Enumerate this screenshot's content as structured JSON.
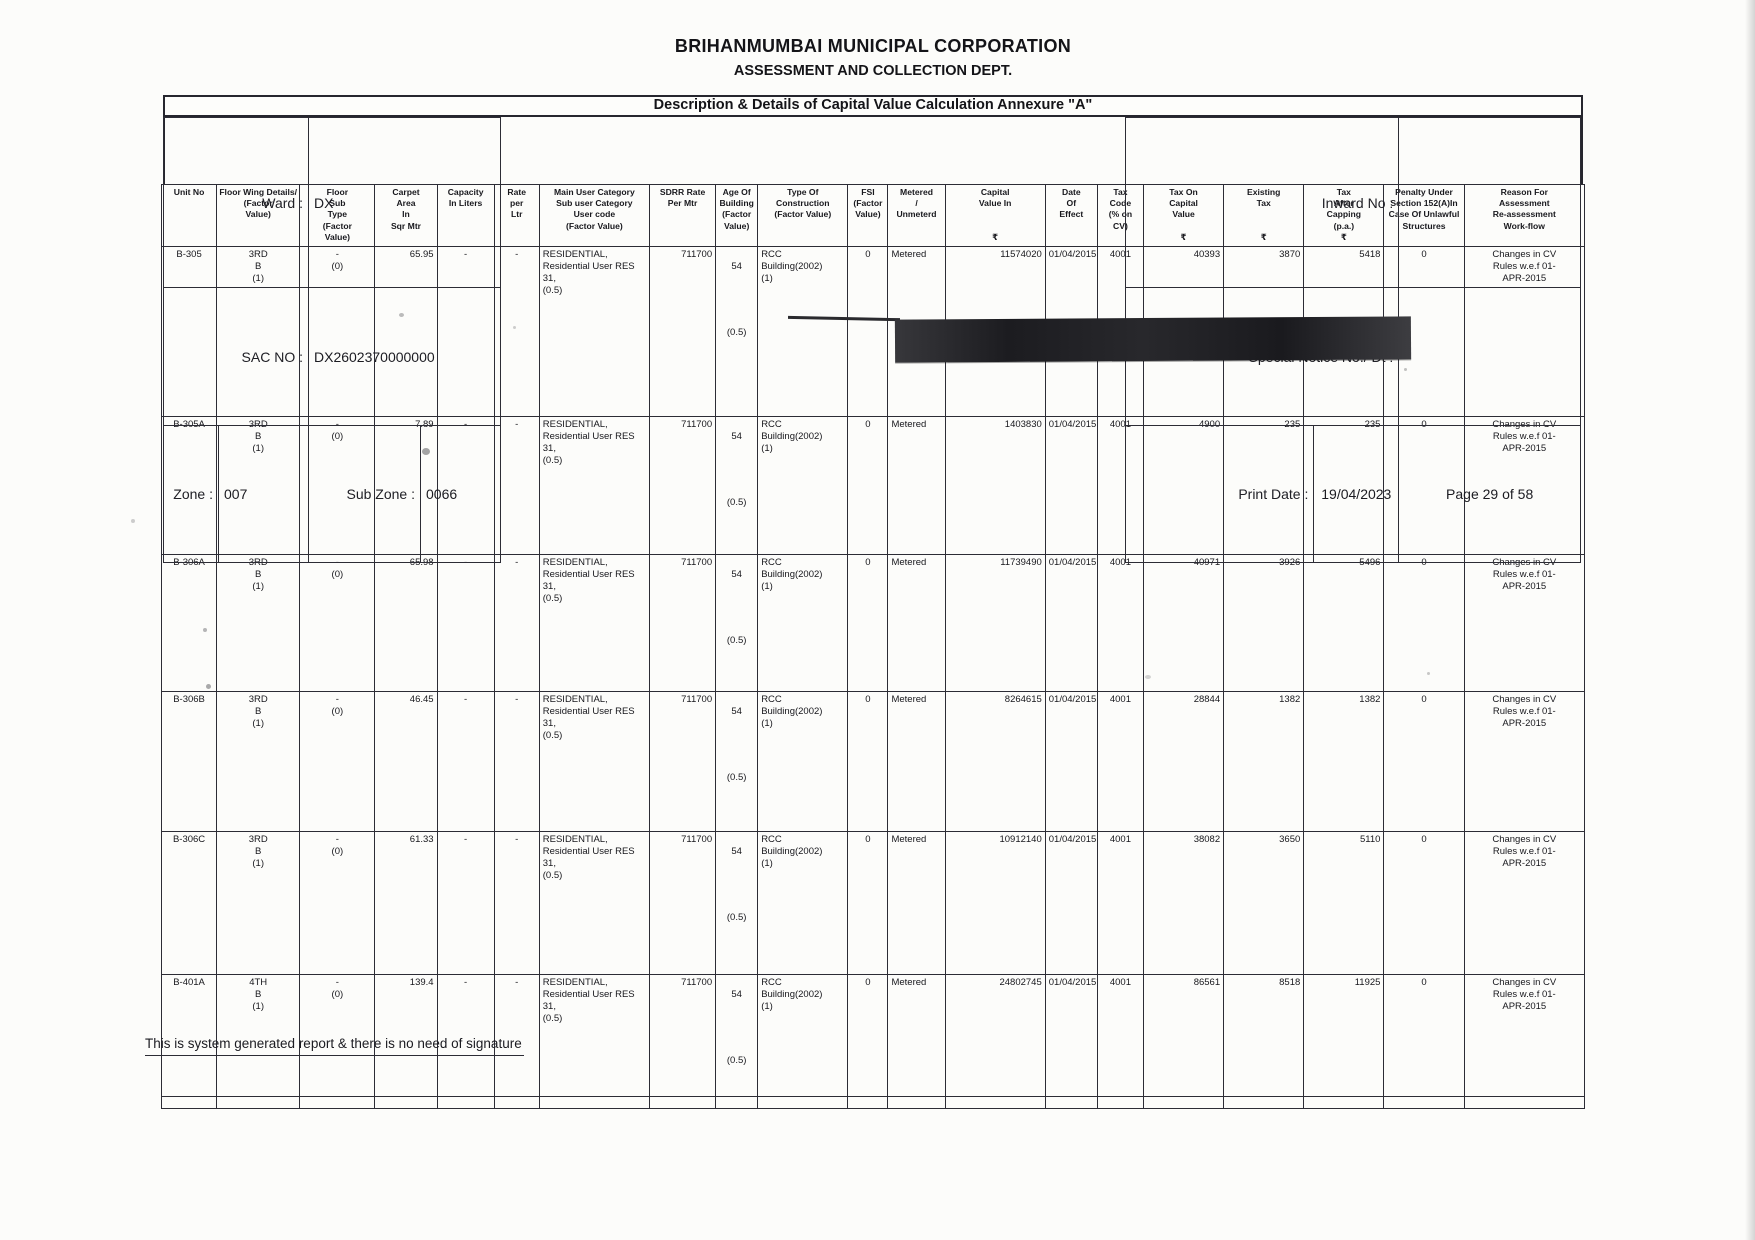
{
  "header": {
    "org": "BRIHANMUMBAI MUNICIPAL CORPORATION",
    "dept": "ASSESSMENT AND COLLECTION DEPT.",
    "doc_title": "Description & Details of Capital Value Calculation Annexure \"A\""
  },
  "info": {
    "ward_label": "Ward :",
    "ward_value": "DX",
    "sac_label": "SAC NO :",
    "sac_value": "DX2602370000000",
    "zone_label": "Zone :",
    "zone_value": "007",
    "subzone_label": "Sub Zone :",
    "subzone_value": "0066",
    "inward_label": "Inward No :",
    "inward_value": "",
    "special_label": "Special Notice No./ Dt :",
    "special_value": "",
    "printdate_label": "Print Date :",
    "printdate_value": "19/04/2023",
    "page_label": "Page 29 of 58"
  },
  "table": {
    "headers": [
      "Unit No",
      "Floor Wing Details/\n(Factor\nValue)",
      "Floor\nSub\nType\n(Factor\nValue)",
      "Carpet\nArea\nIn\nSqr Mtr",
      "Capacity\nIn Liters",
      "Rate\nper\nLtr",
      "Main User Category\nSub user Category\nUser code\n(Factor Value)",
      "SDRR Rate\nPer Mtr",
      "Age Of\nBuilding\n(Factor\nValue)",
      "Type Of\nConstruction\n(Factor Value)",
      "FSI\n(Factor\nValue)",
      "Metered\n/\nUnmeterd",
      "Capital\nValue In\n\n\n₹",
      "Date\nOf\nEffect",
      "Tax\nCode\n(% on\nCV)",
      "Tax On\nCapital\nValue\n\n₹",
      "Existing\nTax\n\n\n₹",
      "Tax\nAfter\nCapping\n(p.a.)\n₹",
      "Penalty Under\nSection 152(A)In\nCase Of Unlawful\nStructures",
      "Reason For\nAssessment\nRe-assessment\nWork-flow"
    ],
    "rows": [
      {
        "unit": "B-305",
        "floor": "3RD\nB\n(1)",
        "floor_sub": "-\n(0)",
        "carpet": "65.95",
        "capacity": "-",
        "rate": "-",
        "user": "RESIDENTIAL,\nResidential User RES 31,\n(0.5)",
        "sdrr": "711700",
        "age": "54",
        "age_factor": "(0.5)",
        "construction": "RCC Building(2002)\n(1)",
        "fsi": "0",
        "metered": "Metered",
        "capital": "11574020",
        "date": "01/04/2015",
        "tax_code": "4001",
        "tax_on_cv": "40393",
        "existing_tax": "3870",
        "tax_capping": "5418",
        "penalty": "0",
        "reason": "Changes in CV\nRules w.e.f 01-\nAPR-2015"
      },
      {
        "unit": "B-305A",
        "floor": "3RD\nB\n(1)",
        "floor_sub": "-\n(0)",
        "carpet": "7.89",
        "capacity": "-",
        "rate": "-",
        "user": "RESIDENTIAL,\nResidential User RES 31,\n(0.5)",
        "sdrr": "711700",
        "age": "54",
        "age_factor": "(0.5)",
        "construction": "RCC Building(2002)\n(1)",
        "fsi": "0",
        "metered": "Metered",
        "capital": "1403830",
        "date": "01/04/2015",
        "tax_code": "4001",
        "tax_on_cv": "4900",
        "existing_tax": "235",
        "tax_capping": "235",
        "penalty": "0",
        "reason": "Changes in CV\nRules w.e.f 01-\nAPR-2015"
      },
      {
        "unit": "B-306A",
        "floor": "3RD\nB\n(1)",
        "floor_sub": "-\n(0)",
        "carpet": "65.98",
        "capacity": "-",
        "rate": "-",
        "user": "RESIDENTIAL,\nResidential User RES 31,\n(0.5)",
        "sdrr": "711700",
        "age": "54",
        "age_factor": "(0.5)",
        "construction": "RCC Building(2002)\n(1)",
        "fsi": "0",
        "metered": "Metered",
        "capital": "11739490",
        "date": "01/04/2015",
        "tax_code": "4001",
        "tax_on_cv": "40971",
        "existing_tax": "3926",
        "tax_capping": "5496",
        "penalty": "0",
        "reason": "Changes in CV\nRules w.e.f 01-\nAPR-2015"
      },
      {
        "unit": "B-306B",
        "floor": "3RD\nB\n(1)",
        "floor_sub": "-\n(0)",
        "carpet": "46.45",
        "capacity": "-",
        "rate": "-",
        "user": "RESIDENTIAL,\nResidential User RES 31,\n(0.5)",
        "sdrr": "711700",
        "age": "54",
        "age_factor": "(0.5)",
        "construction": "RCC Building(2002)\n(1)",
        "fsi": "0",
        "metered": "Metered",
        "capital": "8264615",
        "date": "01/04/2015",
        "tax_code": "4001",
        "tax_on_cv": "28844",
        "existing_tax": "1382",
        "tax_capping": "1382",
        "penalty": "0",
        "reason": "Changes in CV\nRules w.e.f 01-\nAPR-2015"
      },
      {
        "unit": "B-306C",
        "floor": "3RD\nB\n(1)",
        "floor_sub": "-\n(0)",
        "carpet": "61.33",
        "capacity": "-",
        "rate": "-",
        "user": "RESIDENTIAL,\nResidential User RES 31,\n(0.5)",
        "sdrr": "711700",
        "age": "54",
        "age_factor": "(0.5)",
        "construction": "RCC Building(2002)\n(1)",
        "fsi": "0",
        "metered": "Metered",
        "capital": "10912140",
        "date": "01/04/2015",
        "tax_code": "4001",
        "tax_on_cv": "38082",
        "existing_tax": "3650",
        "tax_capping": "5110",
        "penalty": "0",
        "reason": "Changes in CV\nRules w.e.f 01-\nAPR-2015"
      },
      {
        "unit": "B-401A",
        "floor": "4TH\nB\n(1)",
        "floor_sub": "-\n(0)",
        "carpet": "139.4",
        "capacity": "-",
        "rate": "-",
        "user": "RESIDENTIAL,\nResidential User RES 31,\n(0.5)",
        "sdrr": "711700",
        "age": "54",
        "age_factor": "(0.5)",
        "construction": "RCC Building(2002)\n(1)",
        "fsi": "0",
        "metered": "Metered",
        "capital": "24802745",
        "date": "01/04/2015",
        "tax_code": "4001",
        "tax_on_cv": "86561",
        "existing_tax": "8518",
        "tax_capping": "11925",
        "penalty": "0",
        "reason": "Changes in CV\nRules w.e.f 01-\nAPR-2015"
      }
    ]
  },
  "footer": {
    "note": "This is system generated report & there is no need of signature"
  },
  "colors": {
    "ink": "#1b1b21",
    "border": "#2c2c35",
    "redaction_bar": "#1d1d20",
    "paper": "#fcfcfa"
  }
}
